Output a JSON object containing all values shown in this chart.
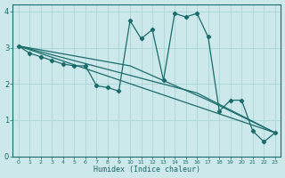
{
  "xlabel": "Humidex (Indice chaleur)",
  "bg_color": "#cce8ea",
  "grid_color": "#b0d8da",
  "line_color": "#1a6b6b",
  "xlim": [
    -0.5,
    23.5
  ],
  "ylim": [
    0,
    4.2
  ],
  "yticks": [
    0,
    1,
    2,
    3,
    4
  ],
  "xtick_labels": [
    "0",
    "1",
    "2",
    "3",
    "4",
    "5",
    "6",
    "7",
    "8",
    "9",
    "10",
    "11",
    "12",
    "13",
    "14",
    "15",
    "16",
    "17",
    "18",
    "19",
    "20",
    "21",
    "22",
    "23"
  ],
  "series1_x": [
    0,
    1,
    2,
    3,
    4,
    5,
    6,
    7,
    8,
    9,
    10,
    11,
    12,
    13,
    14,
    15,
    16,
    17,
    18,
    19,
    20,
    21,
    22,
    23
  ],
  "series1_y": [
    3.05,
    2.85,
    2.75,
    2.65,
    2.55,
    2.5,
    2.5,
    1.95,
    1.9,
    1.8,
    3.75,
    3.25,
    3.5,
    2.1,
    3.95,
    3.85,
    3.95,
    3.3,
    1.25,
    1.55,
    1.55,
    0.7,
    0.4,
    0.65
  ],
  "series2_x": [
    0,
    23
  ],
  "series2_y": [
    3.05,
    0.65
  ],
  "series3_x": [
    0,
    16,
    23
  ],
  "series3_y": [
    3.05,
    1.75,
    0.65
  ],
  "series4_x": [
    0,
    10,
    17,
    23
  ],
  "series4_y": [
    3.05,
    2.5,
    1.55,
    0.65
  ]
}
